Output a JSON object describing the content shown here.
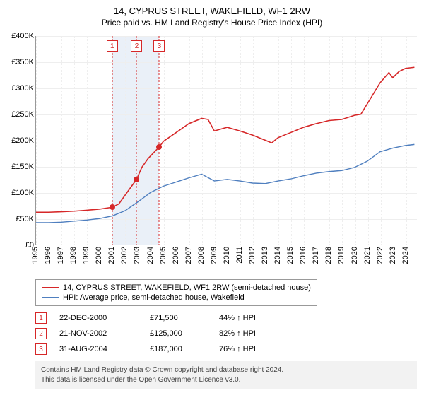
{
  "title": "14, CYPRUS STREET, WAKEFIELD, WF1 2RW",
  "subtitle": "Price paid vs. HM Land Registry's House Price Index (HPI)",
  "chart": {
    "type": "line",
    "background_color": "#ffffff",
    "grid_color": "#eeeeee",
    "axis_color": "#999999",
    "label_fontsize": 11,
    "y": {
      "min": 0,
      "max": 400000,
      "step": 50000,
      "ticks": [
        "£0",
        "£50K",
        "£100K",
        "£150K",
        "£200K",
        "£250K",
        "£300K",
        "£350K",
        "£400K"
      ]
    },
    "x": {
      "min": 1995,
      "max": 2024.9,
      "ticks": [
        1995,
        1996,
        1997,
        1998,
        1999,
        2000,
        2001,
        2002,
        2003,
        2004,
        2005,
        2006,
        2007,
        2008,
        2009,
        2010,
        2011,
        2012,
        2013,
        2014,
        2015,
        2016,
        2017,
        2018,
        2019,
        2020,
        2021,
        2022,
        2023,
        2024
      ]
    },
    "shaded_band": {
      "from": 2000.97,
      "to": 2004.66,
      "color": "#eaf0f8"
    },
    "series": [
      {
        "name": "14, CYPRUS STREET, WAKEFIELD, WF1 2RW (semi-detached house)",
        "color": "#d62728",
        "line_width": 1.6,
        "points": [
          [
            1995,
            62000
          ],
          [
            1996,
            62000
          ],
          [
            1997,
            63000
          ],
          [
            1998,
            64000
          ],
          [
            1999,
            66000
          ],
          [
            2000,
            68000
          ],
          [
            2000.97,
            71500
          ],
          [
            2001.5,
            78000
          ],
          [
            2002,
            95000
          ],
          [
            2002.5,
            112000
          ],
          [
            2002.89,
            125000
          ],
          [
            2003.3,
            148000
          ],
          [
            2003.8,
            165000
          ],
          [
            2004.3,
            178000
          ],
          [
            2004.66,
            187000
          ],
          [
            2005,
            198000
          ],
          [
            2006,
            215000
          ],
          [
            2007,
            232000
          ],
          [
            2008,
            242000
          ],
          [
            2008.5,
            240000
          ],
          [
            2009,
            218000
          ],
          [
            2010,
            225000
          ],
          [
            2011,
            218000
          ],
          [
            2012,
            210000
          ],
          [
            2013,
            200000
          ],
          [
            2013.5,
            195000
          ],
          [
            2014,
            205000
          ],
          [
            2015,
            215000
          ],
          [
            2016,
            225000
          ],
          [
            2017,
            232000
          ],
          [
            2018,
            238000
          ],
          [
            2019,
            240000
          ],
          [
            2020,
            248000
          ],
          [
            2020.5,
            250000
          ],
          [
            2021,
            270000
          ],
          [
            2021.5,
            290000
          ],
          [
            2022,
            310000
          ],
          [
            2022.7,
            330000
          ],
          [
            2023,
            320000
          ],
          [
            2023.5,
            332000
          ],
          [
            2024,
            338000
          ],
          [
            2024.7,
            340000
          ]
        ]
      },
      {
        "name": "HPI: Average price, semi-detached house, Wakefield",
        "color": "#4f7fbf",
        "line_width": 1.4,
        "points": [
          [
            1995,
            42000
          ],
          [
            1996,
            42000
          ],
          [
            1997,
            43000
          ],
          [
            1998,
            45000
          ],
          [
            1999,
            47000
          ],
          [
            2000,
            50000
          ],
          [
            2001,
            55000
          ],
          [
            2002,
            65000
          ],
          [
            2003,
            82000
          ],
          [
            2004,
            100000
          ],
          [
            2005,
            112000
          ],
          [
            2006,
            120000
          ],
          [
            2007,
            128000
          ],
          [
            2008,
            135000
          ],
          [
            2009,
            122000
          ],
          [
            2010,
            125000
          ],
          [
            2011,
            122000
          ],
          [
            2012,
            118000
          ],
          [
            2013,
            117000
          ],
          [
            2014,
            122000
          ],
          [
            2015,
            126000
          ],
          [
            2016,
            132000
          ],
          [
            2017,
            137000
          ],
          [
            2018,
            140000
          ],
          [
            2019,
            142000
          ],
          [
            2020,
            148000
          ],
          [
            2021,
            160000
          ],
          [
            2022,
            178000
          ],
          [
            2023,
            185000
          ],
          [
            2024,
            190000
          ],
          [
            2024.7,
            192000
          ]
        ]
      }
    ],
    "markers": [
      {
        "n": "1",
        "x": 2000.97,
        "y": 71500
      },
      {
        "n": "2",
        "x": 2002.89,
        "y": 125000
      },
      {
        "n": "3",
        "x": 2004.66,
        "y": 187000
      }
    ]
  },
  "legend": {
    "series1": "14, CYPRUS STREET, WAKEFIELD, WF1 2RW (semi-detached house)",
    "series2": "HPI: Average price, semi-detached house, Wakefield"
  },
  "events": [
    {
      "n": "1",
      "date": "22-DEC-2000",
      "price": "£71,500",
      "hpi": "44% ↑ HPI"
    },
    {
      "n": "2",
      "date": "21-NOV-2002",
      "price": "£125,000",
      "hpi": "82% ↑ HPI"
    },
    {
      "n": "3",
      "date": "31-AUG-2004",
      "price": "£187,000",
      "hpi": "76% ↑ HPI"
    }
  ],
  "footnote": {
    "line1": "Contains HM Land Registry data © Crown copyright and database right 2024.",
    "line2": "This data is licensed under the Open Government Licence v3.0."
  }
}
